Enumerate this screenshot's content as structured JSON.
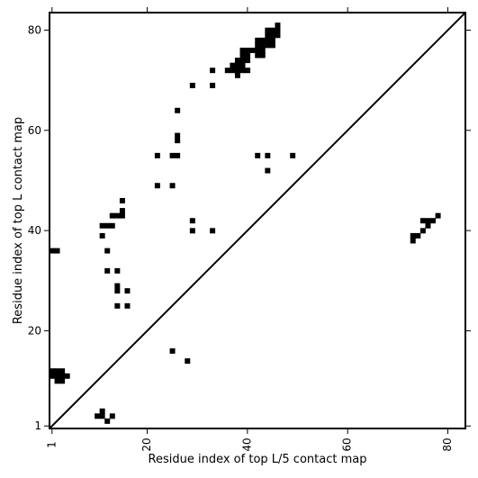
{
  "chart_data": {
    "type": "heatmap",
    "title": "",
    "xlabel": "Residue index of top L/5 contact map",
    "ylabel": "Residue index of top L contact map",
    "xlim": [
      0.5,
      83.5
    ],
    "ylim": [
      0.5,
      83.5
    ],
    "x_ticks": [
      1,
      20,
      40,
      60,
      80
    ],
    "y_ticks": [
      1,
      20,
      40,
      60,
      80
    ],
    "x_tick_labels": [
      "1",
      "20",
      "40",
      "60",
      "80"
    ],
    "y_tick_labels": [
      "1",
      "20",
      "40",
      "60",
      "80"
    ],
    "grid": false,
    "diagonal_line": true,
    "mark_color": "#000000",
    "cells": [
      [
        1,
        36
      ],
      [
        2,
        36
      ],
      [
        1,
        12
      ],
      [
        2,
        12
      ],
      [
        3,
        12
      ],
      [
        1,
        11
      ],
      [
        2,
        11
      ],
      [
        3,
        11
      ],
      [
        4,
        11
      ],
      [
        2,
        10
      ],
      [
        3,
        10
      ],
      [
        10,
        3
      ],
      [
        11,
        3
      ],
      [
        11,
        4
      ],
      [
        12,
        2
      ],
      [
        13,
        3
      ],
      [
        11,
        41
      ],
      [
        12,
        41
      ],
      [
        13,
        41
      ],
      [
        13,
        43
      ],
      [
        14,
        43
      ],
      [
        15,
        43
      ],
      [
        15,
        44
      ],
      [
        15,
        46
      ],
      [
        11,
        39
      ],
      [
        12,
        36
      ],
      [
        12,
        32
      ],
      [
        14,
        32
      ],
      [
        14,
        29
      ],
      [
        14,
        28
      ],
      [
        16,
        28
      ],
      [
        14,
        25
      ],
      [
        16,
        25
      ],
      [
        22,
        55
      ],
      [
        25,
        55
      ],
      [
        26,
        55
      ],
      [
        26,
        58
      ],
      [
        26,
        59
      ],
      [
        26,
        64
      ],
      [
        22,
        49
      ],
      [
        25,
        49
      ],
      [
        29,
        69
      ],
      [
        29,
        42
      ],
      [
        29,
        40
      ],
      [
        33,
        72
      ],
      [
        33,
        69
      ],
      [
        33,
        40
      ],
      [
        25,
        16
      ],
      [
        28,
        14
      ],
      [
        36,
        72
      ],
      [
        37,
        72
      ],
      [
        37,
        73
      ],
      [
        38,
        72
      ],
      [
        38,
        73
      ],
      [
        38,
        74
      ],
      [
        38,
        71
      ],
      [
        39,
        72
      ],
      [
        39,
        73
      ],
      [
        39,
        74
      ],
      [
        39,
        75
      ],
      [
        39,
        76
      ],
      [
        40,
        72
      ],
      [
        40,
        74
      ],
      [
        40,
        75
      ],
      [
        40,
        76
      ],
      [
        41,
        76
      ],
      [
        42,
        75
      ],
      [
        42,
        76
      ],
      [
        42,
        77
      ],
      [
        42,
        78
      ],
      [
        43,
        75
      ],
      [
        43,
        76
      ],
      [
        43,
        77
      ],
      [
        43,
        78
      ],
      [
        44,
        77
      ],
      [
        44,
        78
      ],
      [
        44,
        79
      ],
      [
        44,
        80
      ],
      [
        45,
        77
      ],
      [
        45,
        78
      ],
      [
        45,
        79
      ],
      [
        45,
        80
      ],
      [
        46,
        79
      ],
      [
        46,
        80
      ],
      [
        46,
        81
      ],
      [
        42,
        55
      ],
      [
        44,
        55
      ],
      [
        44,
        52
      ],
      [
        49,
        55
      ],
      [
        73,
        38
      ],
      [
        73,
        39
      ],
      [
        74,
        39
      ],
      [
        75,
        40
      ],
      [
        75,
        42
      ],
      [
        76,
        41
      ],
      [
        76,
        42
      ],
      [
        77,
        42
      ],
      [
        78,
        43
      ]
    ]
  }
}
